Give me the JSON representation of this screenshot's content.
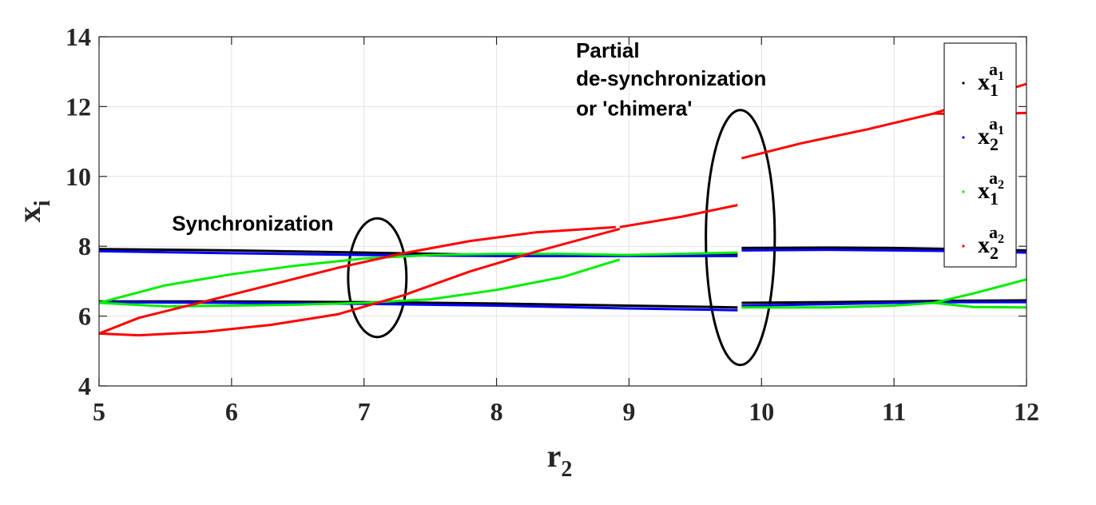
{
  "chart_data": {
    "type": "line",
    "title": "",
    "xlabel": {
      "main": "r",
      "sub": "2"
    },
    "ylabel": {
      "main": "x",
      "sub": "i"
    },
    "xlim": [
      5,
      12
    ],
    "ylim": [
      4,
      14
    ],
    "xticks": [
      "5",
      "6",
      "7",
      "8",
      "9",
      "10",
      "11",
      "12"
    ],
    "yticks": [
      "4",
      "6",
      "8",
      "10",
      "12",
      "14"
    ],
    "grid": true,
    "legend_position": "top-right",
    "annotations": [
      {
        "text": "Synchronization",
        "x": 5.55,
        "y": 8.45
      },
      {
        "text": "Partial",
        "x": 8.6,
        "y": 13.4
      },
      {
        "text": "de-synchronization",
        "x": 8.6,
        "y": 12.6
      },
      {
        "text": "or 'chimera'",
        "x": 8.6,
        "y": 11.75
      }
    ],
    "ellipses": [
      {
        "cx": 7.1,
        "cy": 7.1,
        "rx": 0.22,
        "ry": 1.7,
        "color": "#000000"
      },
      {
        "cx": 9.84,
        "cy": 8.25,
        "rx": 0.26,
        "ry": 3.65,
        "color": "#000000"
      }
    ],
    "series": [
      {
        "legend": {
          "main": "x",
          "sub": "1",
          "sup": "a",
          "supsub": "1"
        },
        "color": "#000000",
        "branches": [
          {
            "x": [
              5,
              6,
              7,
              8,
              9,
              9.82
            ],
            "y": [
              7.92,
              7.88,
              7.82,
              7.75,
              7.75,
              7.77
            ]
          },
          {
            "x": [
              5,
              6,
              7,
              8,
              9,
              9.82
            ],
            "y": [
              6.42,
              6.42,
              6.4,
              6.36,
              6.3,
              6.25
            ]
          },
          {
            "x": [
              9.85,
              10.5,
              11,
              11.5,
              12
            ],
            "y": [
              7.95,
              7.96,
              7.95,
              7.92,
              7.88
            ]
          },
          {
            "x": [
              9.85,
              10.5,
              11,
              11.5,
              12
            ],
            "y": [
              6.38,
              6.4,
              6.42,
              6.44,
              6.45
            ]
          }
        ]
      },
      {
        "legend": {
          "main": "x",
          "sub": "2",
          "sup": "a",
          "supsub": "1"
        },
        "color": "#0000ff",
        "branches": [
          {
            "x": [
              5,
              6,
              7,
              8,
              9,
              9.82
            ],
            "y": [
              7.86,
              7.8,
              7.75,
              7.72,
              7.72,
              7.72
            ]
          },
          {
            "x": [
              5,
              6,
              7,
              8,
              9,
              9.82
            ],
            "y": [
              6.4,
              6.38,
              6.35,
              6.3,
              6.22,
              6.17
            ]
          },
          {
            "x": [
              9.85,
              10.5,
              11,
              11.5,
              12
            ],
            "y": [
              7.88,
              7.9,
              7.88,
              7.86,
              7.82
            ]
          },
          {
            "x": [
              9.85,
              10.5,
              11,
              11.5,
              12
            ],
            "y": [
              6.3,
              6.34,
              6.38,
              6.4,
              6.4
            ]
          }
        ]
      },
      {
        "legend": {
          "main": "x",
          "sub": "1",
          "sup": "a",
          "supsub": "2"
        },
        "color": "#00ee00",
        "branches": [
          {
            "x": [
              5,
              5.5,
              6,
              6.5,
              7,
              7.5,
              8,
              8.5,
              9,
              9.82
            ],
            "y": [
              6.38,
              6.88,
              7.2,
              7.45,
              7.65,
              7.75,
              7.78,
              7.78,
              7.75,
              7.82
            ]
          },
          {
            "x": [
              5,
              5.5,
              6,
              6.5,
              7,
              7.5,
              8,
              8.5,
              8.93
            ],
            "y": [
              6.38,
              6.28,
              6.3,
              6.33,
              6.38,
              6.48,
              6.75,
              7.12,
              7.62
            ]
          },
          {
            "x": [
              9.85,
              10.5,
              11,
              11.3
            ],
            "y": [
              6.25,
              6.25,
              6.3,
              6.38
            ]
          },
          {
            "x": [
              11.3,
              11.6,
              12
            ],
            "y": [
              6.38,
              6.65,
              7.05
            ]
          },
          {
            "x": [
              11.3,
              11.6,
              12
            ],
            "y": [
              6.38,
              6.26,
              6.25
            ]
          }
        ]
      },
      {
        "legend": {
          "main": "x",
          "sub": "2",
          "sup": "a",
          "supsub": "2"
        },
        "color": "#ff0000",
        "branches": [
          {
            "x": [
              5,
              5.3,
              5.8,
              6.3,
              6.8,
              7.3,
              7.8,
              8.3,
              8.9
            ],
            "y": [
              5.5,
              5.95,
              6.42,
              6.9,
              7.38,
              7.8,
              8.15,
              8.4,
              8.55
            ]
          },
          {
            "x": [
              5,
              5.3,
              5.8,
              6.3,
              6.8,
              7.3,
              7.8,
              8.3,
              8.93
            ],
            "y": [
              5.5,
              5.45,
              5.55,
              5.75,
              6.05,
              6.6,
              7.28,
              7.85,
              8.5
            ]
          },
          {
            "x": [
              8.93,
              9.4,
              9.82
            ],
            "y": [
              8.55,
              8.85,
              9.18
            ]
          },
          {
            "x": [
              9.85,
              10.3,
              10.8,
              11.3
            ],
            "y": [
              10.52,
              10.95,
              11.35,
              11.8
            ]
          },
          {
            "x": [
              11.3,
              11.7,
              12
            ],
            "y": [
              11.8,
              12.3,
              12.65
            ]
          },
          {
            "x": [
              11.3,
              11.7,
              12
            ],
            "y": [
              11.8,
              11.78,
              11.82
            ]
          }
        ]
      }
    ]
  }
}
